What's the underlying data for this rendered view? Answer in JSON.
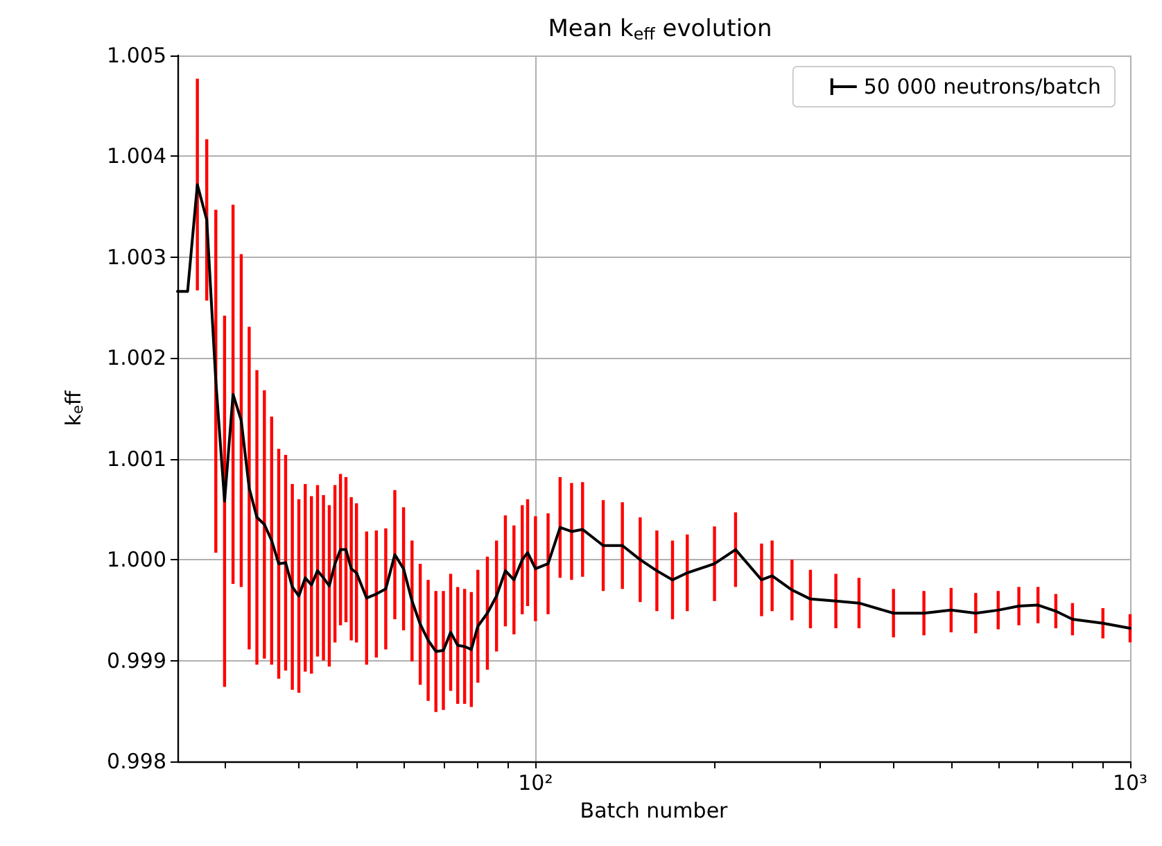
{
  "chart_data": {
    "type": "line",
    "title": "Mean k$_{eff}$ evolution",
    "xlabel": "Batch number",
    "ylabel": "k$_{e}$ff",
    "log": "x",
    "grid": true,
    "legend": "top right",
    "marker": "none",
    "line_style": "solid",
    "xlim": [
      25,
      1000
    ],
    "xticks": [
      {
        "value": 30,
        "label": null
      },
      {
        "value": 40,
        "label": null
      },
      {
        "value": 50,
        "label": null
      },
      {
        "value": 60,
        "label": null
      },
      {
        "value": 70,
        "label": null
      },
      {
        "value": 80,
        "label": null
      },
      {
        "value": 90,
        "label": null
      },
      {
        "value": 100,
        "label": "10²"
      },
      {
        "value": 200,
        "label": null
      },
      {
        "value": 300,
        "label": null
      },
      {
        "value": 400,
        "label": null
      },
      {
        "value": 500,
        "label": null
      },
      {
        "value": 600,
        "label": null
      },
      {
        "value": 700,
        "label": null
      },
      {
        "value": 800,
        "label": null
      },
      {
        "value": 900,
        "label": null
      },
      {
        "value": 1000,
        "label": "10³"
      }
    ],
    "ylim": [
      0.998,
      1.005
    ],
    "yticks": [
      {
        "value": 0.998,
        "label": "0.998"
      },
      {
        "value": 0.999,
        "label": "0.999"
      },
      {
        "value": 1,
        "label": "1.000"
      },
      {
        "value": 1.001,
        "label": "1.001"
      },
      {
        "value": 1.002,
        "label": "1.002"
      },
      {
        "value": 1.003,
        "label": "1.003"
      },
      {
        "value": 1.004,
        "label": "1.004"
      },
      {
        "value": 1.005,
        "label": "1.005"
      }
    ],
    "x": [
      25,
      26,
      27,
      28,
      29,
      30,
      31,
      32,
      33,
      34,
      35,
      36,
      37,
      38,
      39,
      40,
      41,
      42,
      43,
      44,
      45,
      46,
      47,
      48,
      49,
      50,
      52,
      54,
      56,
      58,
      60,
      62,
      64,
      66,
      68,
      70,
      72,
      74,
      76,
      78,
      80,
      83,
      86,
      89,
      92,
      95,
      97,
      100,
      105,
      110,
      115,
      120,
      130,
      140,
      150,
      160,
      170,
      180,
      200,
      217,
      240,
      250,
      270,
      290,
      320,
      350,
      400,
      450,
      500,
      550,
      600,
      650,
      700,
      750,
      800,
      900,
      1000
    ],
    "series": [
      {
        "name": "50 000 neutrons/batch",
        "color": "#000000",
        "values": [
          1.00266,
          1.00266,
          1.00372,
          1.00337,
          1.00177,
          1.00058,
          1.00164,
          1.00138,
          1.00071,
          1.00042,
          1.00035,
          1.00019,
          0.99996,
          0.99997,
          0.99973,
          0.99964,
          0.99982,
          0.99975,
          0.99989,
          0.99982,
          0.99974,
          0.99996,
          1.0001,
          1.0001,
          0.99991,
          0.99987,
          0.99962,
          0.99966,
          0.99971,
          1.00005,
          0.99991,
          0.99959,
          0.99936,
          0.9992,
          0.99909,
          0.9991,
          0.99928,
          0.99915,
          0.99914,
          0.99911,
          0.99934,
          0.99947,
          0.99964,
          0.99989,
          0.9998,
          1.0,
          1.00007,
          0.99991,
          0.99996,
          1.00032,
          1.00028,
          1.0003,
          1.00014,
          1.00014,
          1.0,
          0.99989,
          0.9998,
          0.99987,
          0.99996,
          1.0001,
          0.9998,
          0.99984,
          0.9997,
          0.99961,
          0.99959,
          0.99957,
          0.99947,
          0.99947,
          0.9995,
          0.99947,
          0.9995,
          0.99954,
          0.99955,
          0.99949,
          0.99941,
          0.99937,
          0.99932
        ],
        "errors": [
          null,
          null,
          0.00105,
          0.0008,
          0.0017,
          0.00184,
          0.00188,
          0.00165,
          0.0016,
          0.00146,
          0.00133,
          0.00123,
          0.00114,
          0.00107,
          0.00102,
          0.00096,
          0.00093,
          0.00088,
          0.00085,
          0.00082,
          0.0008,
          0.00078,
          0.00075,
          0.00072,
          0.00071,
          0.00069,
          0.00066,
          0.00063,
          0.0006,
          0.00064,
          0.00061,
          0.0006,
          0.0006,
          0.0006,
          0.0006,
          0.00059,
          0.00058,
          0.00058,
          0.00057,
          0.00057,
          0.00056,
          0.00056,
          0.00055,
          0.00055,
          0.00054,
          0.00054,
          0.00053,
          0.00052,
          0.0005,
          0.0005,
          0.00048,
          0.00047,
          0.00045,
          0.00043,
          0.00042,
          0.0004,
          0.00039,
          0.00038,
          0.00037,
          0.00037,
          0.00036,
          0.00035,
          0.0003,
          0.00029,
          0.00027,
          0.00025,
          0.00024,
          0.00022,
          0.00022,
          0.0002,
          0.00019,
          0.00019,
          0.00018,
          0.00017,
          0.00016,
          0.00015,
          0.00014
        ]
      }
    ]
  }
}
